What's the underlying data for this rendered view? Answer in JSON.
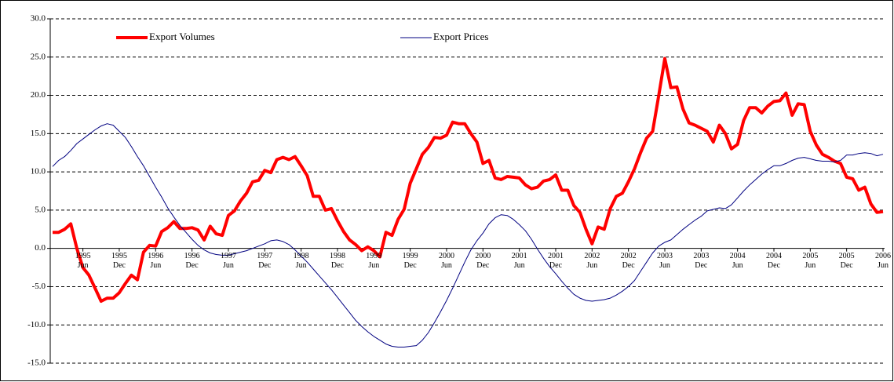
{
  "chart_data": {
    "type": "line",
    "categories": [
      null,
      null,
      null,
      null,
      null,
      "1995 Jun",
      null,
      null,
      null,
      null,
      null,
      "1995 Dec",
      null,
      null,
      null,
      null,
      null,
      "1996 Jun",
      null,
      null,
      null,
      null,
      null,
      "1996 Dec",
      null,
      null,
      null,
      null,
      null,
      "1997 Jun",
      null,
      null,
      null,
      null,
      null,
      "1997 Dec",
      null,
      null,
      null,
      null,
      null,
      "1998 Jun",
      null,
      null,
      null,
      null,
      null,
      "1998 Dec",
      null,
      null,
      null,
      null,
      null,
      "1999 Jun",
      null,
      null,
      null,
      null,
      null,
      "1999 Dec",
      null,
      null,
      null,
      null,
      null,
      "2000 Jun",
      null,
      null,
      null,
      null,
      null,
      "2000 Dec",
      null,
      null,
      null,
      null,
      null,
      "2001 Jun",
      null,
      null,
      null,
      null,
      null,
      "2001 Dec",
      null,
      null,
      null,
      null,
      null,
      "2002 Jun",
      null,
      null,
      null,
      null,
      null,
      "2002 Dec",
      null,
      null,
      null,
      null,
      null,
      "2003 Jun",
      null,
      null,
      null,
      null,
      null,
      "2003 Dec",
      null,
      null,
      null,
      null,
      null,
      "2004 Jun",
      null,
      null,
      null,
      null,
      null,
      "2004 Dec",
      null,
      null,
      null,
      null,
      null,
      "2005 Jun",
      null,
      null,
      null,
      null,
      null,
      "2005 Dec",
      null,
      null,
      null,
      null,
      null,
      "2006 Jun"
    ],
    "series": [
      {
        "name": "Export Volumes",
        "color": "#ff0000",
        "values": [
          2.1,
          2.1,
          2.5,
          3.2,
          0,
          -2.5,
          -3.5,
          -5.2,
          -6.9,
          -6.5,
          -6.5,
          -5.8,
          -4.6,
          -3.5,
          -4.1,
          -0.5,
          0.4,
          0.3,
          2.2,
          2.7,
          3.5,
          2.6,
          2.6,
          2.7,
          2.4,
          1.1,
          2.9,
          1.9,
          1.7,
          4.3,
          4.9,
          6.2,
          7.2,
          8.7,
          8.9,
          10.2,
          9.9,
          11.6,
          11.9,
          11.6,
          12.0,
          10.8,
          9.5,
          6.8,
          6.8,
          5.0,
          5.2,
          3.6,
          2.2,
          1.1,
          0.5,
          -0.3,
          0.2,
          -0.3,
          -1.1,
          2.1,
          1.7,
          3.8,
          5.1,
          8.5,
          10.4,
          12.3,
          13.2,
          14.5,
          14.4,
          14.8,
          16.5,
          16.3,
          16.3,
          15.0,
          13.9,
          11.1,
          11.5,
          9.2,
          9.0,
          9.4,
          9.3,
          9.2,
          8.3,
          7.8,
          8.0,
          8.8,
          9.0,
          9.6,
          7.6,
          7.6,
          5.6,
          4.7,
          2.5,
          0.6,
          2.8,
          2.5,
          5.2,
          6.8,
          7.2,
          8.7,
          10.4,
          12.5,
          14.4,
          15.3,
          20.0,
          24.8,
          21.0,
          21.1,
          18.2,
          16.4,
          16.1,
          15.7,
          15.3,
          13.9,
          16.1,
          15.0,
          13.0,
          13.6,
          16.7,
          18.4,
          18.4,
          17.7,
          18.6,
          19.2,
          19.3,
          20.3,
          17.4,
          18.9,
          18.8,
          15.3,
          13.5,
          12.3,
          11.9,
          11.4,
          11.1,
          9.3,
          9.1,
          7.6,
          8.0,
          5.8,
          4.7,
          4.8
        ]
      },
      {
        "name": "Export Prices",
        "color": "#000080",
        "values": [
          10.7,
          11.5,
          12.0,
          12.8,
          13.7,
          14.3,
          14.9,
          15.5,
          16.0,
          16.3,
          16.1,
          15.3,
          14.5,
          13.3,
          12.0,
          10.8,
          9.4,
          8.0,
          6.7,
          5.3,
          4.1,
          3.0,
          2.1,
          1.2,
          0.4,
          -0.2,
          -0.6,
          -0.8,
          -0.9,
          -0.9,
          -0.7,
          -0.5,
          -0.3,
          0.0,
          0.3,
          0.6,
          1.0,
          1.1,
          0.9,
          0.5,
          -0.2,
          -1.0,
          -1.8,
          -2.7,
          -3.6,
          -4.5,
          -5.4,
          -6.4,
          -7.4,
          -8.4,
          -9.4,
          -10.2,
          -10.9,
          -11.5,
          -12.0,
          -12.5,
          -12.8,
          -12.9,
          -12.9,
          -12.8,
          -12.7,
          -12.0,
          -11.0,
          -9.7,
          -8.3,
          -6.8,
          -5.2,
          -3.5,
          -1.8,
          -0.2,
          1.0,
          2.0,
          3.2,
          4.0,
          4.4,
          4.3,
          3.8,
          3.1,
          2.3,
          1.2,
          -0.1,
          -1.3,
          -2.4,
          -3.3,
          -4.3,
          -5.2,
          -6.0,
          -6.5,
          -6.8,
          -6.9,
          -6.8,
          -6.7,
          -6.5,
          -6.1,
          -5.6,
          -5.0,
          -4.2,
          -3.0,
          -1.8,
          -0.6,
          0.3,
          0.8,
          1.1,
          1.8,
          2.5,
          3.1,
          3.7,
          4.2,
          4.9,
          5.1,
          5.3,
          5.2,
          5.7,
          6.6,
          7.5,
          8.3,
          9.0,
          9.7,
          10.3,
          10.8,
          10.8,
          11.1,
          11.5,
          11.8,
          11.9,
          11.7,
          11.5,
          11.4,
          11.4,
          11.3,
          11.5,
          12.2,
          12.2,
          12.4,
          12.5,
          12.4,
          12.1,
          12.3
        ]
      }
    ],
    "ylim": [
      -15,
      30
    ],
    "yticks": [
      {
        "value": -15,
        "label": "-15.0"
      },
      {
        "value": -10,
        "label": "-10.0"
      },
      {
        "value": -5,
        "label": "-5.0"
      },
      {
        "value": 0,
        "label": "0.0"
      },
      {
        "value": 5,
        "label": "5.0"
      },
      {
        "value": 10,
        "label": "10.0"
      },
      {
        "value": 15,
        "label": "15.0"
      },
      {
        "value": 20,
        "label": "20.0"
      },
      {
        "value": 25,
        "label": "25.0"
      },
      {
        "value": 30,
        "label": "30.0"
      }
    ],
    "grid": true
  }
}
